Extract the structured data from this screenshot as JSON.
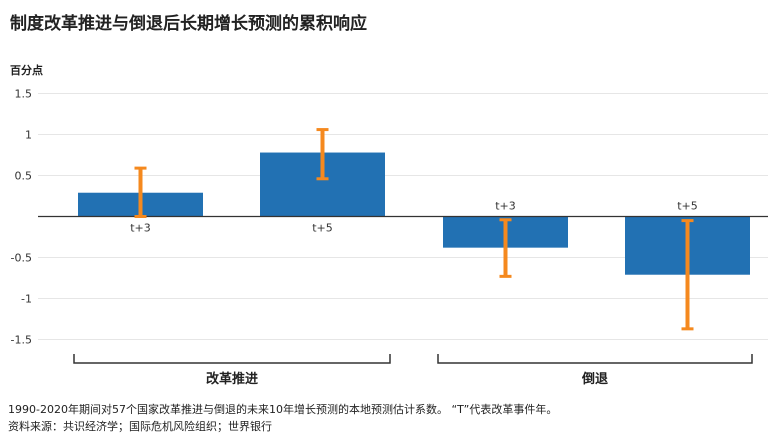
{
  "title": "制度改革推进与倒退后长期增长预测的累积响应",
  "unit_label": "百分点",
  "notes": {
    "line1": "1990-2020年期间对57个国家改革推进与倒退的未来10年增长预测的本地预测估计系数。 “T”代表改革事件年。",
    "line2": "资料来源：共识经济学；国际危机风险组织；世界银行"
  },
  "colors": {
    "bar": "#2271b3",
    "error": "#f5891e",
    "grid": "#e6e6e6",
    "axis": "#333333"
  },
  "chart_data": {
    "type": "bar",
    "title": "制度改革推进与倒退后长期增长预测的累积响应",
    "ylabel": "百分点",
    "ylim": [
      -1.5,
      1.5
    ],
    "yticks": [
      1.5,
      1,
      0.5,
      -0.5,
      -1,
      -1.5
    ],
    "ytick_labels": [
      "1.5",
      "1",
      "0.5",
      "-0.5",
      "-1",
      "-1.5"
    ],
    "grid": true,
    "groups": [
      "改革推进",
      "倒退"
    ],
    "categories": [
      "t+3",
      "t+5",
      "t+3",
      "t+5"
    ],
    "values": [
      0.29,
      0.78,
      -0.38,
      -0.71
    ],
    "error_low": [
      0.0,
      0.46,
      -0.73,
      -1.37
    ],
    "error_high": [
      0.59,
      1.06,
      -0.04,
      -0.05
    ]
  }
}
